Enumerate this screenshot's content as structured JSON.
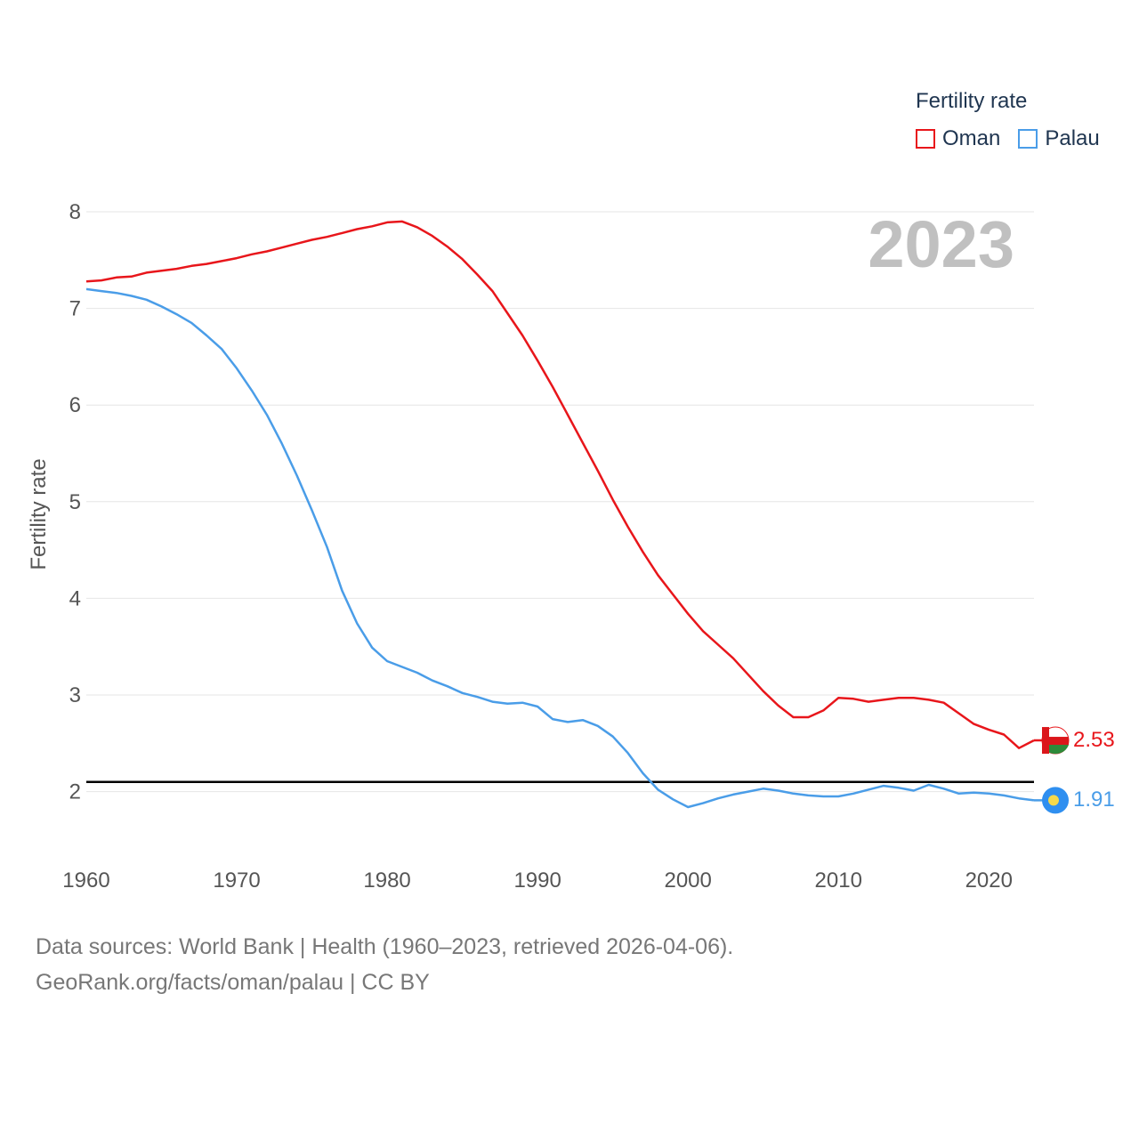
{
  "legend": {
    "title": "Fertility rate",
    "items": [
      {
        "label": "Oman",
        "color": "#e8161b"
      },
      {
        "label": "Palau",
        "color": "#4a9de8"
      }
    ]
  },
  "year_label": "2023",
  "end_values": {
    "oman": "2.53",
    "palau": "1.91"
  },
  "footer": {
    "line1": "Data sources: World Bank | Health (1960–2023, retrieved 2026-04-06).",
    "line2": "GeoRank.org/facts/oman/palau | CC BY"
  },
  "chart_data": {
    "type": "line",
    "title": "Fertility rate",
    "xlabel": "",
    "ylabel": "Fertility rate",
    "xlim": [
      1960,
      2023
    ],
    "ylim": [
      1.5,
      8.1
    ],
    "xticks": [
      1960,
      1970,
      1980,
      1990,
      2000,
      2010,
      2020
    ],
    "yticks": [
      2,
      3,
      4,
      5,
      6,
      7,
      8
    ],
    "grid": true,
    "reference_line": 2.1,
    "x": [
      1960,
      1961,
      1962,
      1963,
      1964,
      1965,
      1966,
      1967,
      1968,
      1969,
      1970,
      1971,
      1972,
      1973,
      1974,
      1975,
      1976,
      1977,
      1978,
      1979,
      1980,
      1981,
      1982,
      1983,
      1984,
      1985,
      1986,
      1987,
      1988,
      1989,
      1990,
      1991,
      1992,
      1993,
      1994,
      1995,
      1996,
      1997,
      1998,
      1999,
      2000,
      2001,
      2002,
      2003,
      2004,
      2005,
      2006,
      2007,
      2008,
      2009,
      2010,
      2011,
      2012,
      2013,
      2014,
      2015,
      2016,
      2017,
      2018,
      2019,
      2020,
      2021,
      2022,
      2023
    ],
    "series": [
      {
        "name": "Oman",
        "color": "#e8161b",
        "values": [
          7.28,
          7.29,
          7.32,
          7.33,
          7.37,
          7.39,
          7.41,
          7.44,
          7.46,
          7.49,
          7.52,
          7.56,
          7.59,
          7.63,
          7.67,
          7.71,
          7.74,
          7.78,
          7.82,
          7.85,
          7.89,
          7.9,
          7.84,
          7.75,
          7.64,
          7.51,
          7.35,
          7.18,
          6.95,
          6.72,
          6.46,
          6.19,
          5.9,
          5.61,
          5.32,
          5.02,
          4.74,
          4.48,
          4.24,
          4.04,
          3.84,
          3.66,
          3.52,
          3.38,
          3.21,
          3.04,
          2.89,
          2.77,
          2.77,
          2.84,
          2.97,
          2.96,
          2.93,
          2.95,
          2.97,
          2.97,
          2.95,
          2.92,
          2.81,
          2.7,
          2.64,
          2.59,
          2.45,
          2.53
        ]
      },
      {
        "name": "Palau",
        "color": "#4a9de8",
        "values": [
          7.2,
          7.18,
          7.16,
          7.13,
          7.09,
          7.02,
          6.94,
          6.85,
          6.72,
          6.58,
          6.38,
          6.15,
          5.9,
          5.6,
          5.27,
          4.91,
          4.53,
          4.08,
          3.74,
          3.49,
          3.35,
          3.29,
          3.23,
          3.15,
          3.09,
          3.02,
          2.98,
          2.93,
          2.91,
          2.92,
          2.88,
          2.75,
          2.72,
          2.74,
          2.68,
          2.57,
          2.4,
          2.19,
          2.02,
          1.92,
          1.84,
          1.88,
          1.93,
          1.97,
          2.0,
          2.03,
          2.01,
          1.98,
          1.96,
          1.95,
          1.95,
          1.98,
          2.02,
          2.06,
          2.04,
          2.01,
          2.07,
          2.03,
          1.98,
          1.99,
          1.98,
          1.96,
          1.93,
          1.91
        ]
      }
    ]
  }
}
